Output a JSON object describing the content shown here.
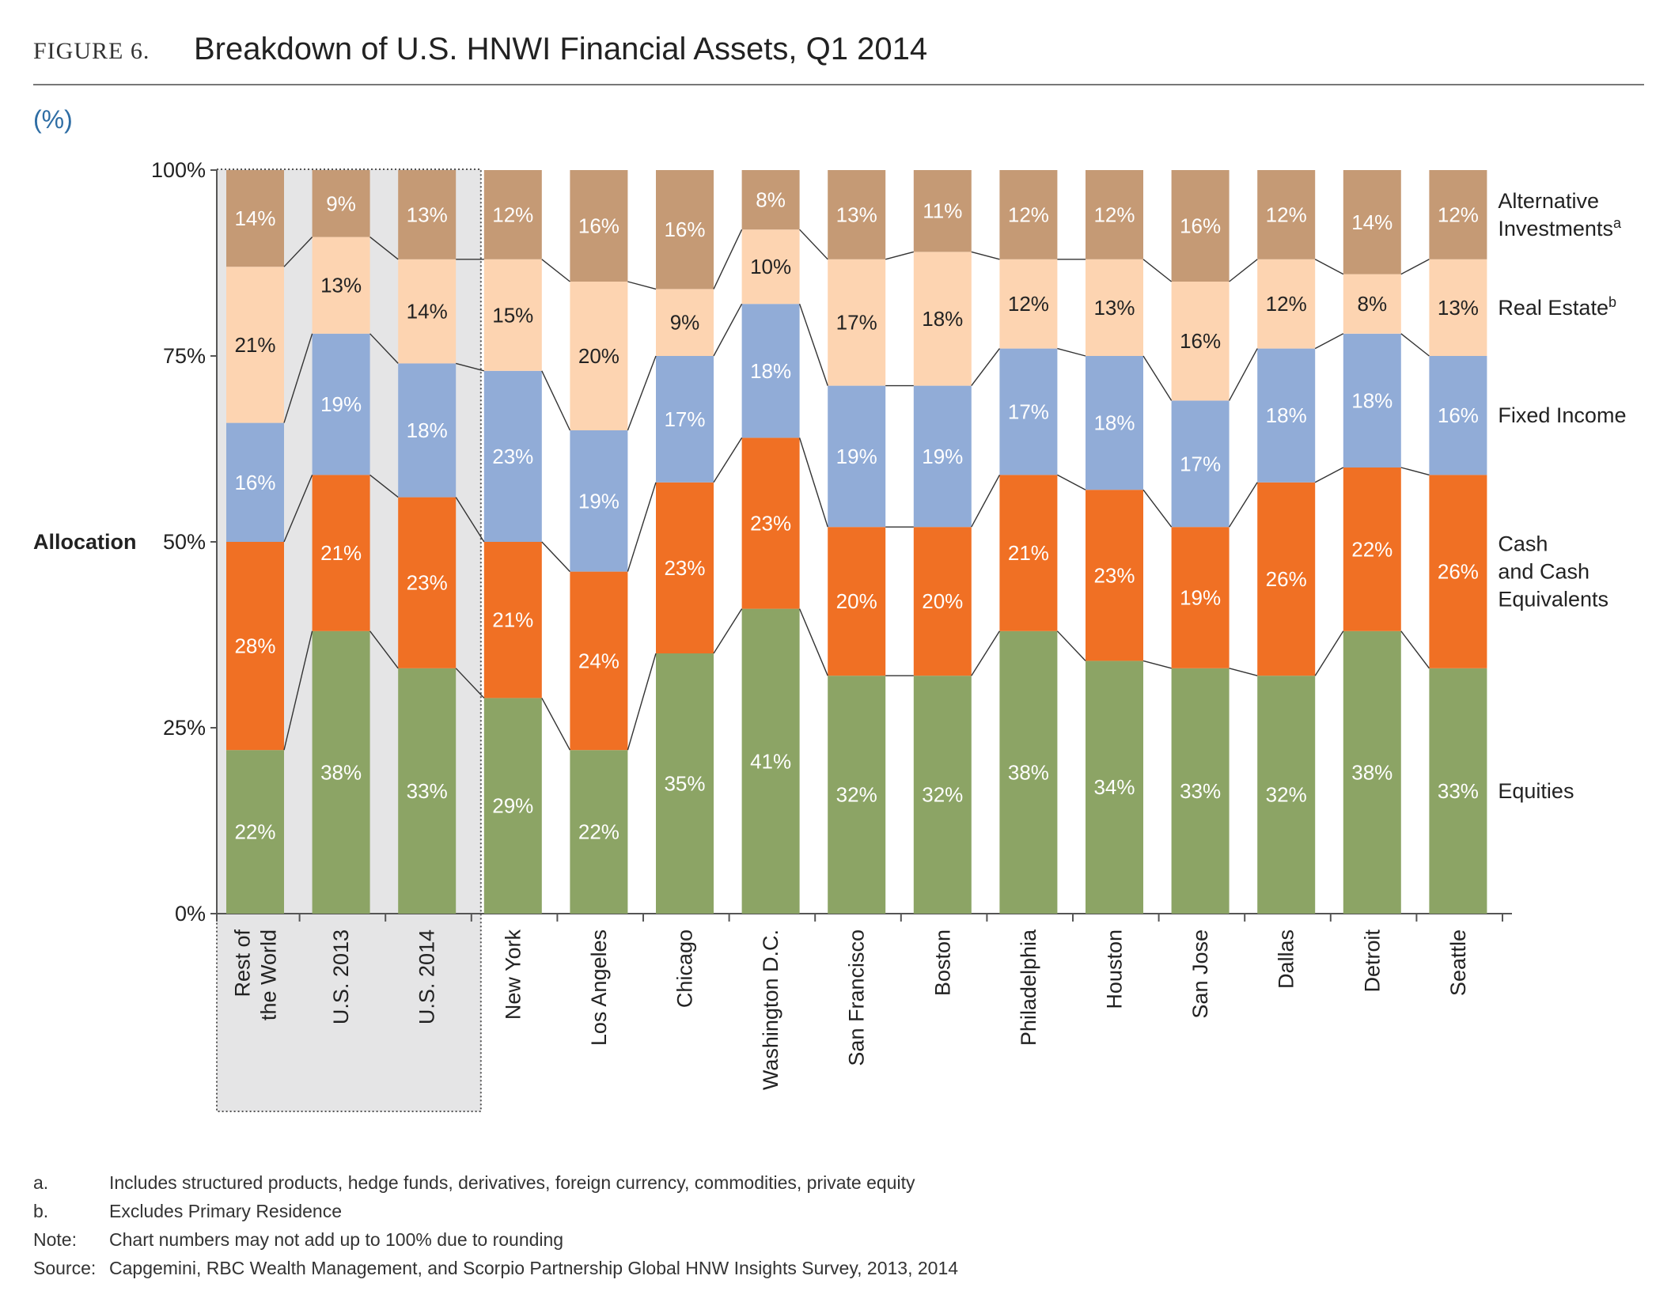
{
  "header": {
    "figure_label": "FIGURE 6.",
    "title": "Breakdown of U.S. HNWI Financial Assets, Q1 2014"
  },
  "unit_label": "(%)",
  "colors": {
    "Equities": "#8ca465",
    "Cash and Cash Equivalents": "#f07024",
    "Fixed Income": "#91acd7",
    "Real Estate": "#fdd4b1",
    "Alternative Investments": "#c59a75",
    "highlight_box": "#e5e5e6"
  },
  "chart_data": {
    "type": "bar",
    "stacked": true,
    "ylabel": "Allocation",
    "ylim": [
      0,
      100
    ],
    "yticks": [
      "0%",
      "25%",
      "50%",
      "75%",
      "100%"
    ],
    "categories": [
      "Rest of the World",
      "U.S. 2013",
      "U.S. 2014",
      "New York",
      "Los Angeles",
      "Chicago",
      "Washington D.C.",
      "San Francisco",
      "Boston",
      "Philadelphia",
      "Houston",
      "San Jose",
      "Dallas",
      "Detroit",
      "Seattle"
    ],
    "category_lines": [
      [
        "Rest of",
        "the World"
      ],
      [
        "U.S. 2013"
      ],
      [
        "U.S. 2014"
      ],
      [
        "New York"
      ],
      [
        "Los Angeles"
      ],
      [
        "Chicago"
      ],
      [
        "Washington D.C."
      ],
      [
        "San Francisco"
      ],
      [
        "Boston"
      ],
      [
        "Philadelphia"
      ],
      [
        "Houston"
      ],
      [
        "San Jose"
      ],
      [
        "Dallas"
      ],
      [
        "Detroit"
      ],
      [
        "Seattle"
      ]
    ],
    "highlighted_categories": [
      "Rest of the World",
      "U.S. 2013",
      "U.S. 2014"
    ],
    "series": [
      {
        "name": "Equities",
        "values": [
          22,
          38,
          33,
          29,
          22,
          35,
          41,
          32,
          32,
          38,
          34,
          33,
          32,
          38,
          33
        ],
        "labels": [
          "22%",
          "38%",
          "33%",
          "29%",
          "22%",
          "35%",
          "41%",
          "32%",
          "32%",
          "38%",
          "34%",
          "33%",
          "32%",
          "38%",
          "33%"
        ]
      },
      {
        "name": "Cash and Cash Equivalents",
        "values": [
          28,
          21,
          23,
          21,
          24,
          23,
          23,
          20,
          20,
          21,
          23,
          19,
          26,
          22,
          26
        ],
        "labels": [
          "28%",
          "21%",
          "23%",
          "21%",
          "24%",
          "23%",
          "23%",
          "20%",
          "20%",
          "21%",
          "23%",
          "19%",
          "26%",
          "22%",
          "26%"
        ]
      },
      {
        "name": "Fixed Income",
        "values": [
          16,
          19,
          18,
          23,
          19,
          17,
          18,
          19,
          19,
          17,
          18,
          17,
          18,
          18,
          16
        ],
        "labels": [
          "16%",
          "19%",
          "18%",
          "23%",
          "19%",
          "17%",
          "18%",
          "19%",
          "19%",
          "17%",
          "18%",
          "17%",
          "18%",
          "18%",
          "16%"
        ]
      },
      {
        "name": "Real Estate",
        "values": [
          21,
          13,
          14,
          15,
          20,
          9,
          10,
          17,
          18,
          12,
          13,
          16,
          12,
          8,
          13
        ],
        "labels": [
          "21%",
          "13%",
          "14%",
          "15%",
          "20%",
          "9%",
          "10%",
          "17%",
          "18%",
          "12%",
          "13%",
          "16%",
          "12%",
          "8%",
          "13%"
        ]
      },
      {
        "name": "Alternative Investments",
        "values": [
          14,
          9,
          13,
          12,
          16,
          16,
          8,
          13,
          11,
          12,
          12,
          16,
          12,
          14,
          12
        ],
        "labels": [
          "14%",
          "9%",
          "13%",
          "12%",
          "16%",
          "16%",
          "8%",
          "13%",
          "11%",
          "12%",
          "12%",
          "16%",
          "12%",
          "14%",
          "12%"
        ]
      }
    ],
    "legend": [
      {
        "series": "Alternative Investments",
        "lines": [
          "Alternative",
          "Investments"
        ],
        "sup": "a"
      },
      {
        "series": "Real Estate",
        "lines": [
          "Real Estate"
        ],
        "sup": "b"
      },
      {
        "series": "Fixed Income",
        "lines": [
          "Fixed Income"
        ],
        "sup": ""
      },
      {
        "series": "Cash and Cash Equivalents",
        "lines": [
          "Cash",
          "and Cash",
          "Equivalents"
        ],
        "sup": ""
      },
      {
        "series": "Equities",
        "lines": [
          "Equities"
        ],
        "sup": ""
      }
    ],
    "legend_placement": "right"
  },
  "footnotes": [
    {
      "key": "a.",
      "text": "Includes structured products, hedge funds, derivatives, foreign currency, commodities, private equity"
    },
    {
      "key": "b.",
      "text": "Excludes Primary Residence"
    },
    {
      "key": "Note:",
      "text": "Chart numbers may not add up to 100% due to rounding"
    },
    {
      "key": "Source:",
      "text": "Capgemini, RBC Wealth Management, and Scorpio Partnership Global HNW Insights Survey, 2013, 2014"
    }
  ]
}
